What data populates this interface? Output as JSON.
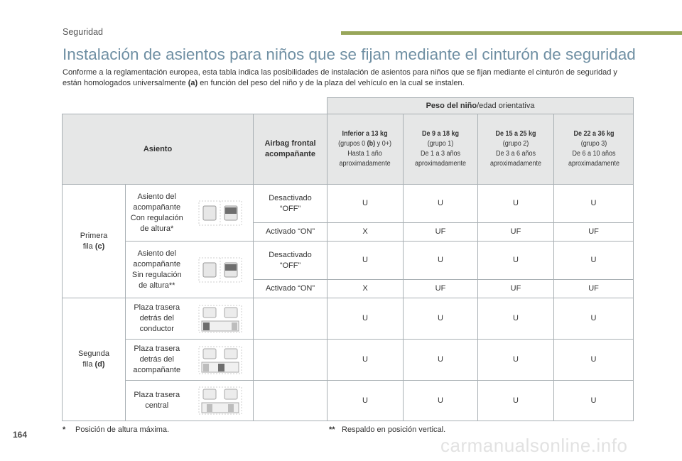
{
  "header": {
    "section": "Seguridad",
    "bar_color": "#98a65a"
  },
  "title": "Instalación de asientos para niños que se fijan mediante el cinturón de seguridad",
  "intro": {
    "part1": "Conforme a la reglamentación europea, esta tabla indica las posibilidades de instalación de asientos para niños que se fijan mediante el cinturón de seguridad y están homologados universalmente ",
    "bold": "(a)",
    "part2": " en función del peso del niño y de la plaza del vehículo en la cual se instalen."
  },
  "table": {
    "weight_header_bold": "Peso del niño",
    "weight_header_rest": "/edad orientativa",
    "col_seat": "Asiento",
    "col_airbag": "Airbag frontal acompañante",
    "groups": [
      {
        "l1a": "Inferior a 13 kg",
        "l2a": "(grupos 0 ",
        "l2b": "(b)",
        "l2c": " y 0+)",
        "l3": "Hasta 1 año",
        "l4": "aproximadamente"
      },
      {
        "l1a": "De 9 a 18 kg",
        "l2a": "(grupo 1)",
        "l2b": "",
        "l2c": "",
        "l3": "De 1 a 3 años",
        "l4": "aproximadamente"
      },
      {
        "l1a": "De 15 a 25 kg",
        "l2a": "(grupo 2)",
        "l2b": "",
        "l2c": "",
        "l3": "De 3 a 6 años",
        "l4": "aproximadamente"
      },
      {
        "l1a": "De 22 a 36 kg",
        "l2a": "(grupo 3)",
        "l2b": "",
        "l2c": "",
        "l3": "De 6 a 10 años",
        "l4": "aproximadamente"
      }
    ],
    "row1": {
      "label_a": "Primera",
      "label_b": "fila ",
      "label_bold": "(c)",
      "seat1": {
        "l1": "Asiento del",
        "l2": "acompañante",
        "l3": "Con regulación",
        "l4": "de altura*",
        "off_label_a": "Desactivado",
        "off_label_b": "“OFF”",
        "off": [
          "U",
          "U",
          "U",
          "U"
        ],
        "on_label": "Activado “ON”",
        "on": [
          "X",
          "UF",
          "UF",
          "UF"
        ]
      },
      "seat2": {
        "l1": "Asiento del",
        "l2": "acompañante",
        "l3": "Sin regulación",
        "l4": "de altura**",
        "off_label_a": "Desactivado",
        "off_label_b": "“OFF”",
        "off": [
          "U",
          "U",
          "U",
          "U"
        ],
        "on_label": "Activado “ON”",
        "on": [
          "X",
          "UF",
          "UF",
          "UF"
        ]
      }
    },
    "row2": {
      "label_a": "Segunda",
      "label_b": "fila ",
      "label_bold": "(d)",
      "seats": [
        {
          "l1": "Plaza trasera",
          "l2": "detrás del",
          "l3": "conductor",
          "values": [
            "U",
            "U",
            "U",
            "U"
          ]
        },
        {
          "l1": "Plaza trasera",
          "l2": "detrás del",
          "l3": "acompañante",
          "values": [
            "U",
            "U",
            "U",
            "U"
          ]
        },
        {
          "l1": "Plaza trasera",
          "l2": "central",
          "l3": "",
          "values": [
            "U",
            "U",
            "U",
            "U"
          ]
        }
      ]
    }
  },
  "footnotes": {
    "fn1_mark": "*",
    "fn1_text": "Posición de altura máxima.",
    "fn2_mark": "**",
    "fn2_text": "Respaldo en posición vertical."
  },
  "page_number": "164",
  "watermark": "carmanualsonline.info"
}
